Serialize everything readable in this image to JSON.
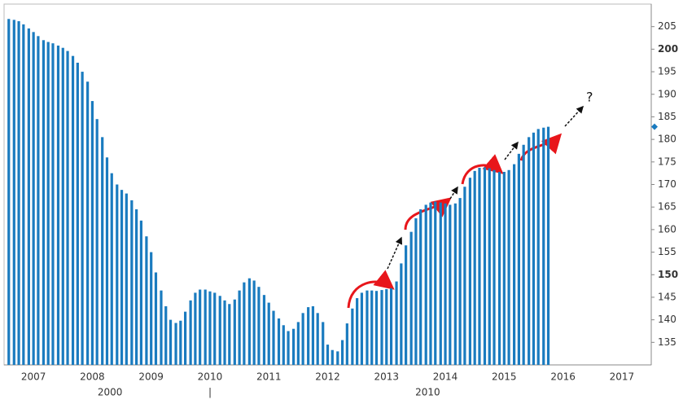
{
  "chart_data": {
    "type": "bar",
    "x": [
      2006.58,
      2006.67,
      2006.75,
      2006.83,
      2006.92,
      2007.0,
      2007.08,
      2007.17,
      2007.25,
      2007.33,
      2007.42,
      2007.5,
      2007.58,
      2007.67,
      2007.75,
      2007.83,
      2007.92,
      2008.0,
      2008.08,
      2008.17,
      2008.25,
      2008.33,
      2008.42,
      2008.5,
      2008.58,
      2008.67,
      2008.75,
      2008.83,
      2008.92,
      2009.0,
      2009.08,
      2009.17,
      2009.25,
      2009.33,
      2009.42,
      2009.5,
      2009.58,
      2009.67,
      2009.75,
      2009.83,
      2009.92,
      2010.0,
      2010.08,
      2010.17,
      2010.25,
      2010.33,
      2010.42,
      2010.5,
      2010.58,
      2010.67,
      2010.75,
      2010.83,
      2010.92,
      2011.0,
      2011.08,
      2011.17,
      2011.25,
      2011.33,
      2011.42,
      2011.5,
      2011.58,
      2011.67,
      2011.75,
      2011.83,
      2011.92,
      2012.0,
      2012.08,
      2012.17,
      2012.25,
      2012.33,
      2012.42,
      2012.5,
      2012.58,
      2012.67,
      2012.75,
      2012.83,
      2012.92,
      2013.0,
      2013.08,
      2013.17,
      2013.25,
      2013.33,
      2013.42,
      2013.5,
      2013.58,
      2013.67,
      2013.75,
      2013.83,
      2013.92,
      2014.0,
      2014.08,
      2014.17,
      2014.25,
      2014.33,
      2014.42,
      2014.5,
      2014.58,
      2014.67,
      2014.75,
      2014.83,
      2014.92,
      2015.0,
      2015.08,
      2015.17,
      2015.25,
      2015.33,
      2015.42,
      2015.5,
      2015.58,
      2015.67,
      2015.75
    ],
    "values": [
      206.7,
      206.5,
      206.2,
      205.5,
      204.6,
      203.8,
      202.9,
      202.0,
      201.6,
      201.3,
      200.8,
      200.3,
      199.6,
      198.5,
      197.0,
      195.0,
      192.8,
      188.5,
      184.5,
      180.5,
      176.0,
      172.5,
      170.0,
      168.8,
      168.0,
      166.5,
      164.5,
      162.0,
      158.5,
      155.0,
      150.5,
      146.5,
      143.0,
      140.0,
      139.3,
      139.8,
      141.8,
      144.3,
      146.0,
      146.7,
      146.7,
      146.3,
      146.0,
      145.3,
      144.3,
      143.5,
      144.5,
      146.5,
      148.3,
      149.2,
      148.7,
      147.3,
      145.5,
      143.8,
      142.0,
      140.3,
      138.8,
      137.5,
      138.0,
      139.5,
      141.5,
      142.8,
      143.0,
      141.5,
      139.5,
      134.5,
      133.3,
      133.0,
      135.5,
      139.2,
      142.5,
      144.8,
      146.0,
      146.5,
      146.5,
      146.4,
      146.6,
      146.8,
      147.0,
      148.5,
      152.5,
      156.5,
      159.5,
      162.5,
      164.5,
      165.5,
      166.0,
      166.2,
      166.0,
      165.8,
      165.5,
      165.8,
      167.0,
      169.5,
      171.5,
      173.0,
      173.7,
      173.8,
      173.6,
      173.2,
      172.8,
      172.8,
      173.2,
      174.5,
      176.8,
      178.8,
      180.5,
      181.5,
      182.3,
      182.6,
      182.8
    ],
    "color": "#1a7bbf",
    "xlim": [
      2006.5,
      2017.5
    ],
    "xticks": [
      2007,
      2008,
      2009,
      2010,
      2011,
      2012,
      2013,
      2014,
      2015,
      2016,
      2017
    ],
    "x_group_labels": [
      {
        "value": 2008.3,
        "label": "2000"
      },
      {
        "value": 2013.7,
        "label": "2010"
      }
    ],
    "ylim": [
      130,
      210
    ],
    "yticks": [
      135,
      140,
      145,
      150,
      155,
      160,
      165,
      170,
      175,
      180,
      185,
      190,
      195,
      200,
      205
    ],
    "yticks_bold": [
      150,
      200
    ],
    "annotations": [
      "?"
    ]
  }
}
